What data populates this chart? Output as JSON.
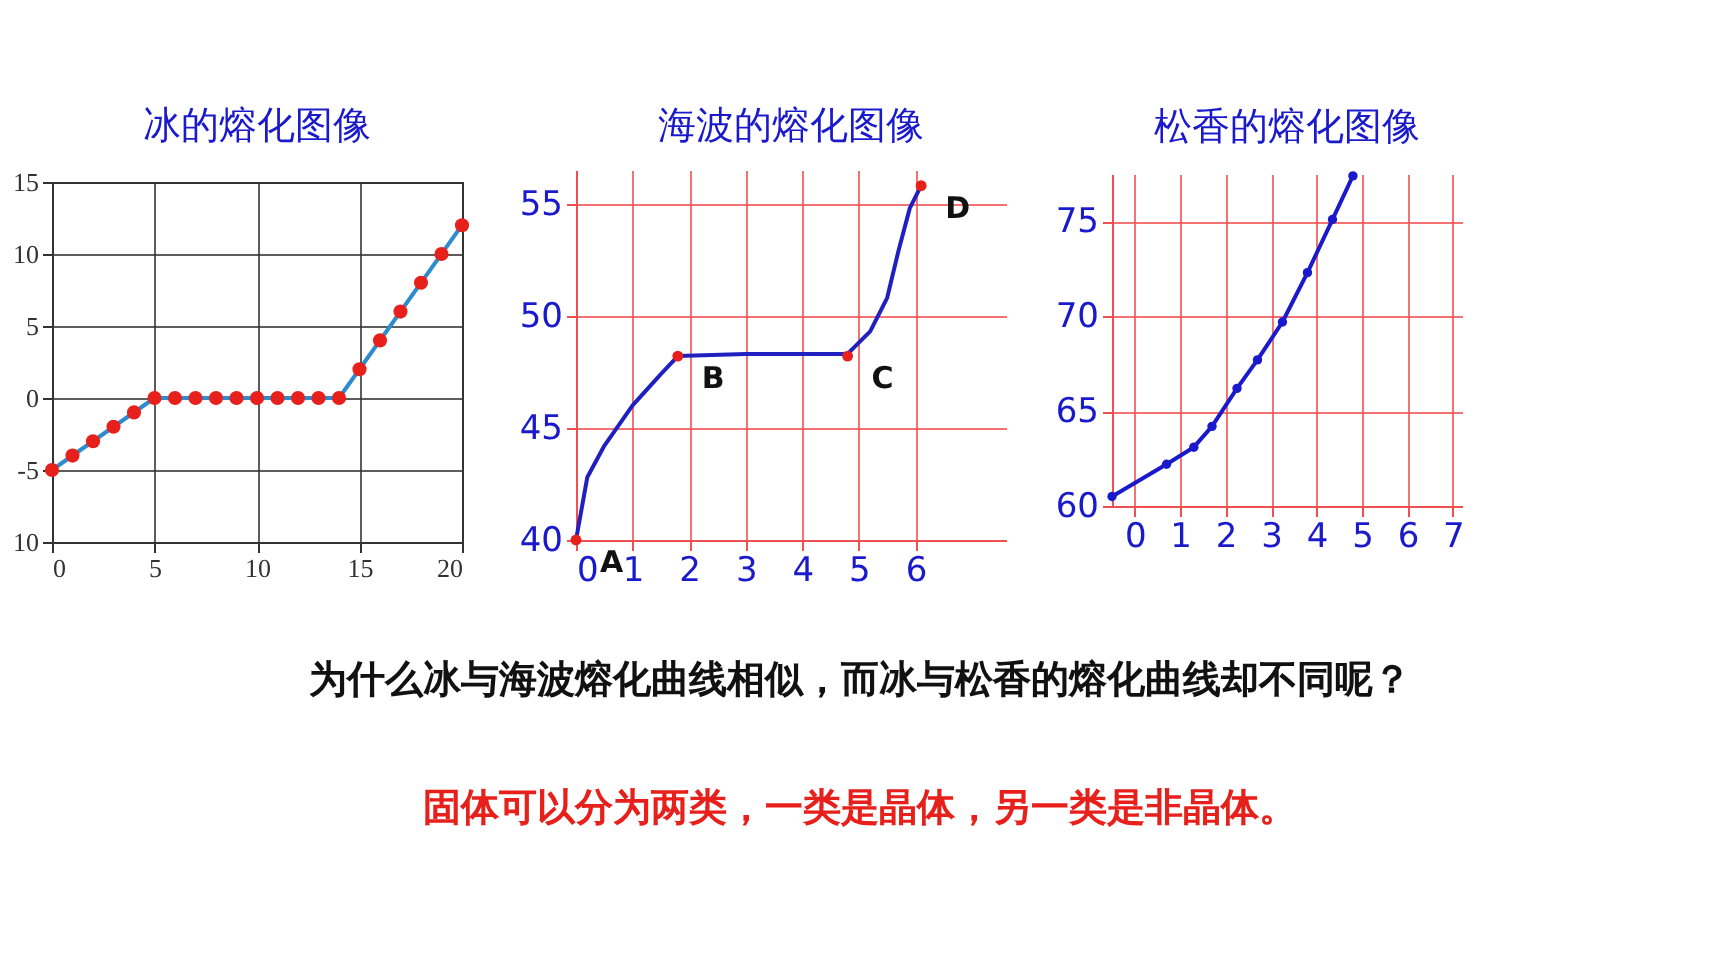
{
  "chart_data": [
    {
      "type": "line",
      "title": "冰的熔化图像",
      "xlim": [
        0,
        20
      ],
      "xticks": [
        0,
        5,
        10,
        15,
        20
      ],
      "ylim": [
        -10,
        15
      ],
      "yticks": [
        {
          "value": -10,
          "label": "10"
        },
        -5,
        0,
        5,
        10,
        15
      ],
      "grid": true,
      "series": [
        {
          "type": "line",
          "color": "#2e8bcc",
          "marker": "none",
          "x": [
            0,
            5,
            14,
            20
          ],
          "values": [
            -5,
            0,
            0,
            12
          ]
        },
        {
          "type": "scatter",
          "color": "#e8201c",
          "marker": "circle",
          "x": [
            0,
            1,
            2,
            3,
            4,
            5,
            6,
            7,
            8,
            9,
            10,
            11,
            12,
            13,
            14,
            15,
            16,
            17,
            18,
            19,
            20
          ],
          "values": [
            -5,
            -4,
            -3,
            -2,
            -1,
            0,
            0,
            0,
            0,
            0,
            0,
            0,
            0,
            0,
            0,
            2,
            4,
            6,
            8,
            10,
            12
          ]
        }
      ]
    },
    {
      "type": "line",
      "title": "海波的熔化图像",
      "xlim": [
        0,
        7.6
      ],
      "xticks": [
        0,
        1,
        2,
        3,
        4,
        5,
        6
      ],
      "ylim": [
        40,
        56.5
      ],
      "yticks": [
        40,
        45,
        50,
        55
      ],
      "grid": true,
      "series": [
        {
          "type": "line",
          "color": "#2020c0",
          "marker": "none",
          "x": [
            0,
            0.2,
            0.5,
            1,
            1.5,
            1.8,
            3,
            4.8,
            5.2,
            5.5,
            5.7,
            5.9,
            6.1
          ],
          "values": [
            40,
            42.8,
            44.2,
            46,
            47.4,
            48.2,
            48.3,
            48.3,
            49.3,
            50.8,
            52.9,
            54.8,
            55.8
          ]
        },
        {
          "type": "scatter",
          "color": "#e8201c",
          "marker": "circle",
          "x": [
            0,
            1.8,
            4.8,
            6.1
          ],
          "values": [
            40,
            48.2,
            48.2,
            55.8
          ]
        }
      ],
      "annotations": [
        {
          "text": "A",
          "x": 0,
          "y": 40
        },
        {
          "text": "B",
          "x": 1.8,
          "y": 48.2
        },
        {
          "text": "C",
          "x": 4.8,
          "y": 48.2
        },
        {
          "text": "D",
          "x": 6.1,
          "y": 55.8
        }
      ]
    },
    {
      "type": "line",
      "title": "松香的熔化图像",
      "xlim": [
        -0.5,
        7.2
      ],
      "xticks": [
        0,
        1,
        2,
        3,
        4,
        5,
        6,
        7
      ],
      "ylim": [
        60,
        77.5
      ],
      "yticks": [
        60,
        65,
        70,
        75
      ],
      "grid": true,
      "marker": "circle",
      "series": [
        {
          "type": "line",
          "color": "#1a1acc",
          "x": [
            -0.5,
            0.7,
            1.3,
            1.7,
            2.25,
            2.7,
            3.25,
            3.8,
            4.35,
            4.8
          ],
          "values": [
            60.5,
            62.2,
            63.1,
            64.2,
            66.2,
            67.7,
            69.7,
            72.3,
            75.1,
            77.4
          ]
        }
      ]
    },
    {
      "type": "other",
      "annotations": [
        "为什么冰与海波熔化曲线相似，而冰与松香的熔化曲线却不同呢？",
        "固体可以分为两类，一类是晶体，另一类是非晶体。"
      ]
    }
  ]
}
